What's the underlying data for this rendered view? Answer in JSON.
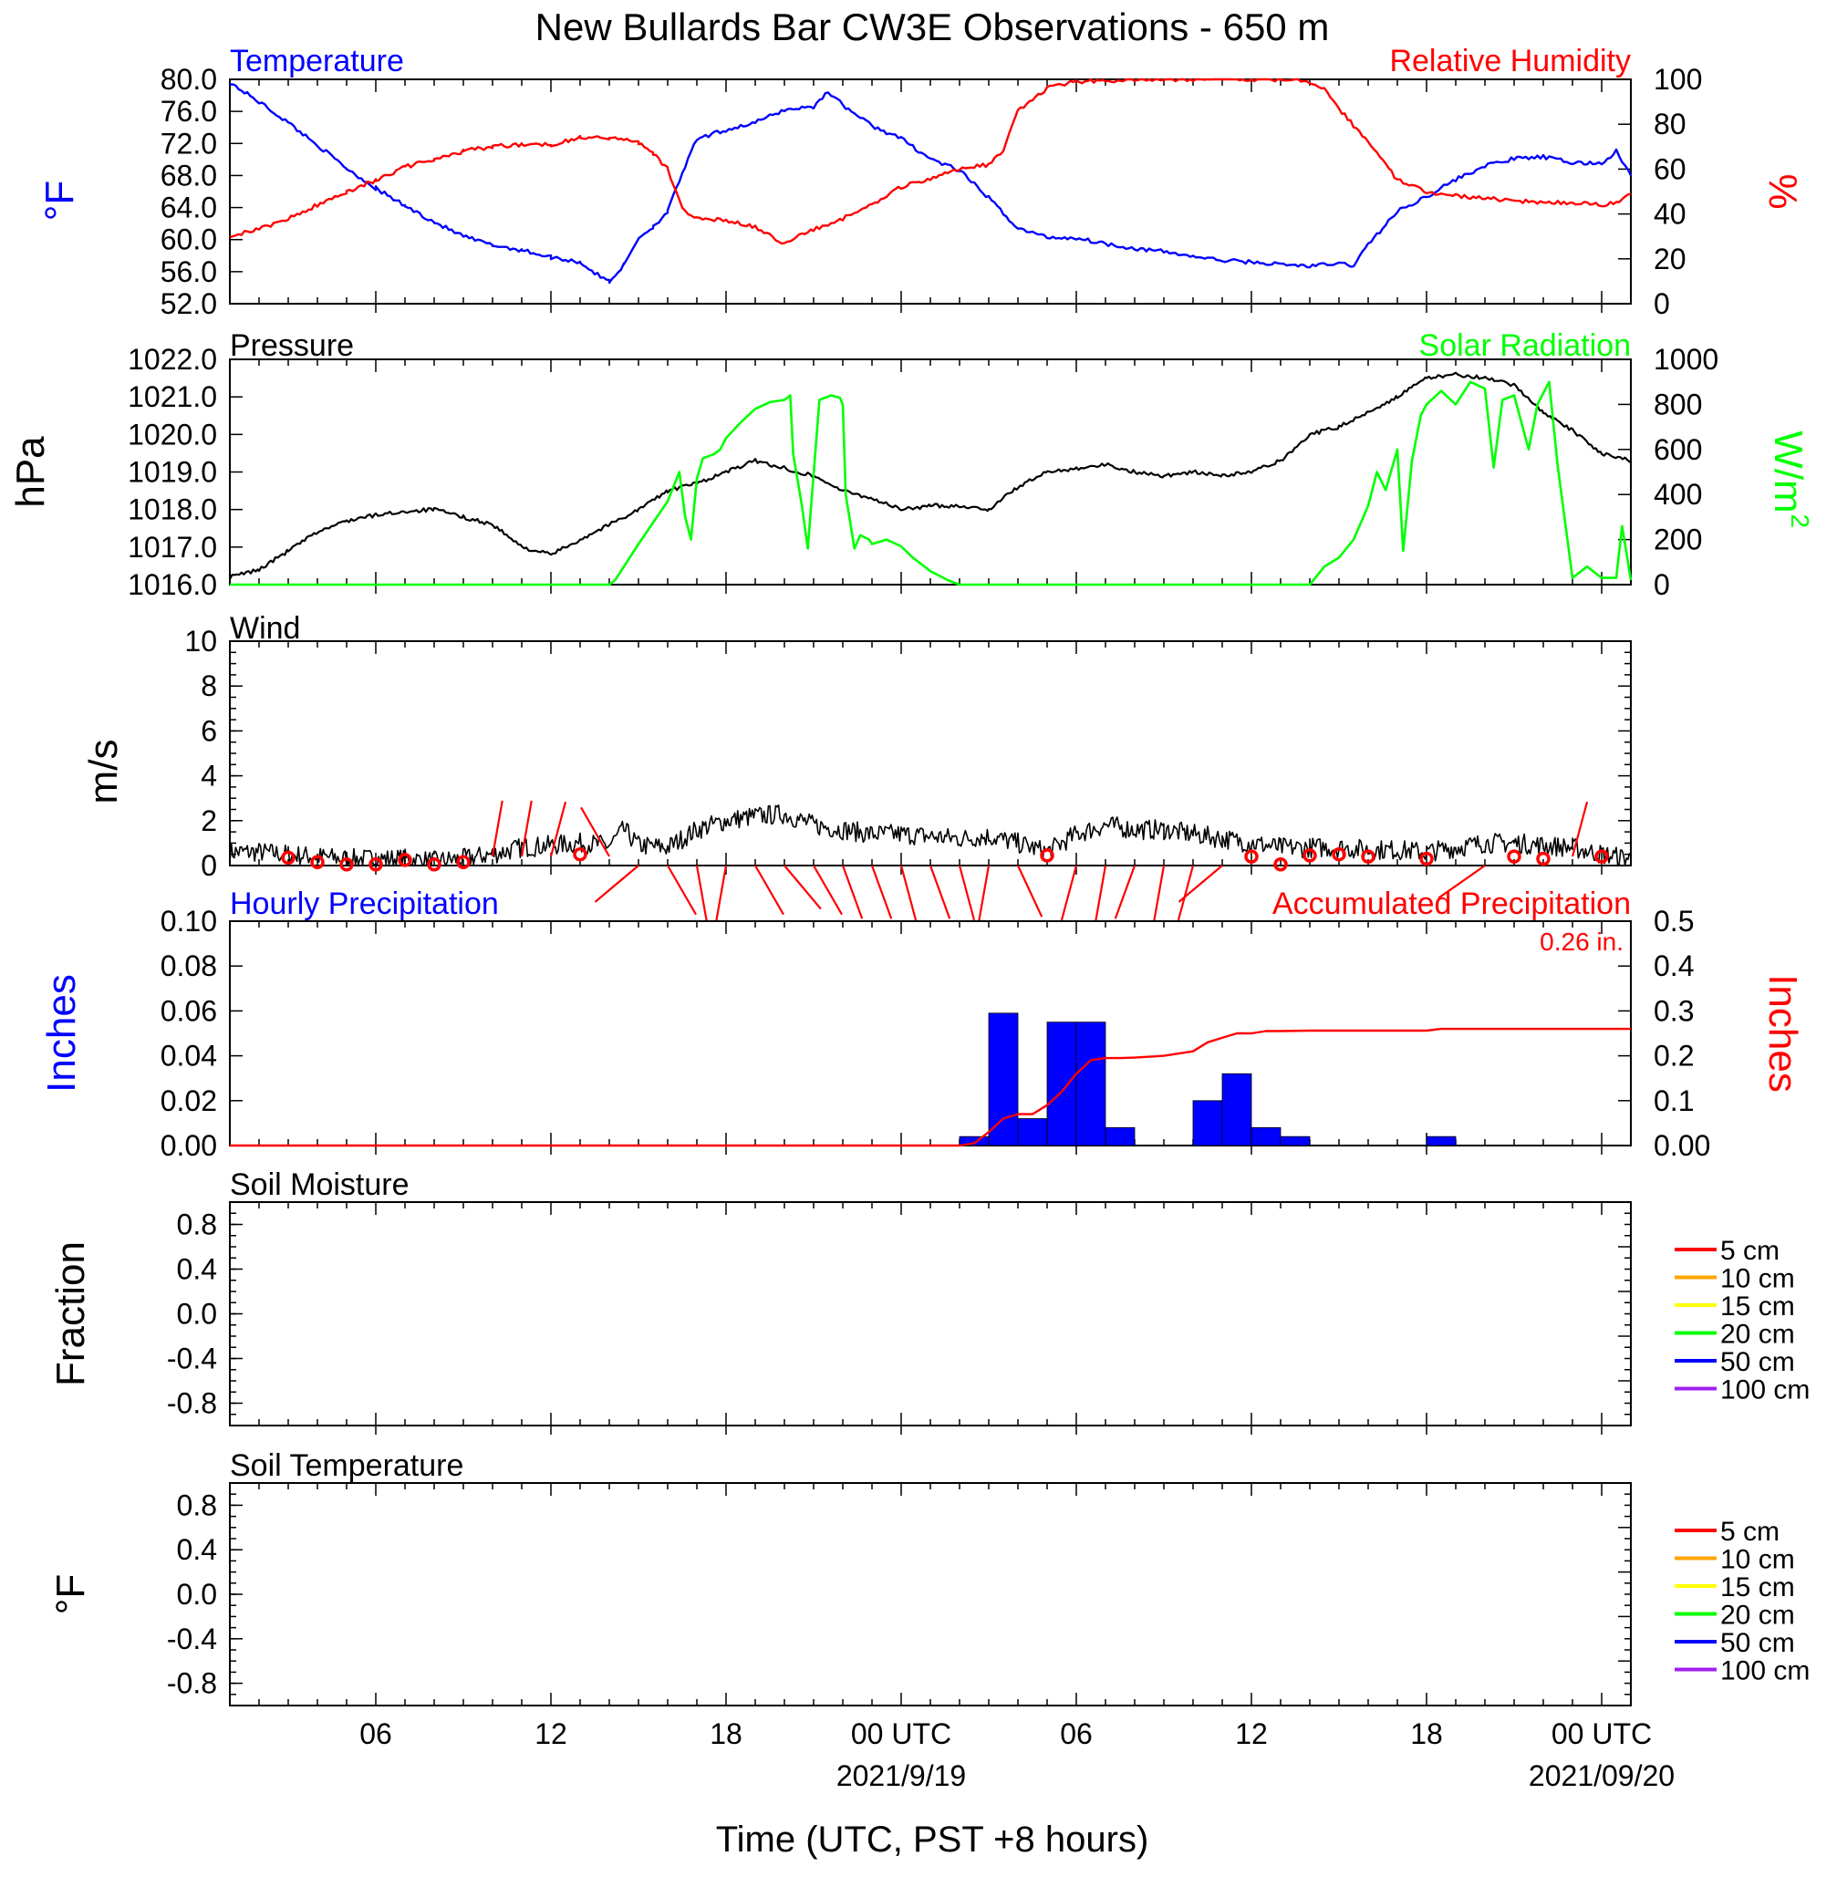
{
  "title": "New Bullards Bar CW3E Observations - 650 m",
  "xlabel": "Time (UTC, PST +8 hours)",
  "x_ticks": {
    "labels": [
      "06",
      "12",
      "18",
      "00 UTC",
      "06",
      "12",
      "18",
      "00 UTC"
    ],
    "hours": [
      6,
      12,
      18,
      24,
      30,
      36,
      42,
      48
    ],
    "dates": [
      {
        "hour": 24,
        "label": "2021/9/19"
      },
      {
        "hour": 48,
        "label": "2021/09/20"
      }
    ]
  },
  "colors": {
    "blue": "#0000ff",
    "red": "#ff0000",
    "green": "#00ff00",
    "black": "#000000",
    "soil_5": "#ff0000",
    "soil_10": "#ffa500",
    "soil_15": "#ffff00",
    "soil_20": "#00ff00",
    "soil_50": "#0000ff",
    "soil_100": "#a020f0"
  },
  "chart_data": [
    {
      "type": "line",
      "panel": "temperature_humidity",
      "left_title": "Temperature",
      "right_title": "Relative Humidity",
      "left_unit": "°F",
      "right_unit": "%",
      "left_ylim": [
        52,
        80
      ],
      "left_ticks": [
        "80.0",
        "76.0",
        "72.0",
        "68.0",
        "64.0",
        "60.0",
        "56.0",
        "52.0"
      ],
      "right_ylim": [
        0,
        100
      ],
      "right_ticks": [
        "100",
        "80",
        "60",
        "40",
        "20",
        "0"
      ],
      "series": [
        {
          "name": "Temperature",
          "axis": "left",
          "color": "#0000ff",
          "x": [
            1,
            2,
            3,
            4,
            5,
            6,
            7,
            8,
            9,
            10,
            11,
            12,
            13,
            13.5,
            14,
            14.5,
            15,
            15.5,
            16,
            16.5,
            17,
            18,
            19,
            20,
            21,
            21.5,
            22,
            23,
            24,
            25,
            26,
            27,
            28,
            29,
            30,
            31,
            32,
            33,
            34,
            35,
            36,
            37,
            38,
            39,
            39.5,
            40,
            41,
            42,
            43,
            44,
            45,
            46,
            47,
            48,
            48.5,
            49
          ],
          "values": [
            79.6,
            77.2,
            74.6,
            71.8,
            68.9,
            66.4,
            64.2,
            62.2,
            60.4,
            59.3,
            58.7,
            57.8,
            57.2,
            55.8,
            54.8,
            56.8,
            60.2,
            61.6,
            63.5,
            68.3,
            72.5,
            73.7,
            74.6,
            76.2,
            76.6,
            78.5,
            76.8,
            74.2,
            72.6,
            70.1,
            68.6,
            65.2,
            61.4,
            60.3,
            60.2,
            59.5,
            58.9,
            58.5,
            57.9,
            57.4,
            57.2,
            56.9,
            56.7,
            57.0,
            56.8,
            59.4,
            63.5,
            65.4,
            67.5,
            69.2,
            70.1,
            70.3,
            69.6,
            69.5,
            71.0,
            68.0
          ]
        },
        {
          "name": "Relative Humidity",
          "axis": "right",
          "color": "#ff0000",
          "x": [
            1,
            2,
            3,
            4,
            5,
            6,
            7,
            8,
            9,
            10,
            11,
            12,
            13,
            14,
            15,
            15.5,
            16,
            16.5,
            17,
            18,
            19,
            20,
            21,
            22,
            23,
            24,
            25,
            26,
            27,
            27.5,
            28,
            29,
            30,
            31,
            32,
            33,
            34,
            35,
            36,
            37,
            38,
            38.5,
            39,
            40,
            41,
            42,
            43,
            44,
            45,
            46,
            47,
            48,
            48.5,
            49
          ],
          "values": [
            30.5,
            33.0,
            38.0,
            44.0,
            50.0,
            55.0,
            61.0,
            64.0,
            68.0,
            70.0,
            71.0,
            71.0,
            74.0,
            74.0,
            72.0,
            67.0,
            60.0,
            42.0,
            38.5,
            37.0,
            34.0,
            27.0,
            33.0,
            38.0,
            44.0,
            52.0,
            56.0,
            60.0,
            62.0,
            68.0,
            86.0,
            96.0,
            99.0,
            99.5,
            99.7,
            100.0,
            100.0,
            100.0,
            100.0,
            99.8,
            99.0,
            96.0,
            87.0,
            72.0,
            55.0,
            50.0,
            48.0,
            47.0,
            46.0,
            45.0,
            45.0,
            44.0,
            45.0,
            49.0
          ]
        }
      ]
    },
    {
      "type": "line",
      "panel": "pressure_solar",
      "left_title": "Pressure",
      "right_title": "Solar Radiation",
      "left_unit": "hPa",
      "right_unit": "W/m",
      "right_unit_sup": "2",
      "left_ylim": [
        1016,
        1022
      ],
      "left_ticks": [
        "1022.0",
        "1021.0",
        "1020.0",
        "1019.0",
        "1018.0",
        "1017.0",
        "1016.0"
      ],
      "right_ylim": [
        0,
        1000
      ],
      "right_ticks": [
        "1000",
        "800",
        "600",
        "400",
        "200",
        "0"
      ],
      "series": [
        {
          "name": "Pressure",
          "axis": "left",
          "color": "#000000",
          "x": [
            1,
            2,
            3,
            4,
            5,
            6,
            7,
            8,
            9,
            10,
            11,
            12,
            13,
            14,
            15,
            16,
            17,
            18,
            19,
            20,
            21,
            22,
            23,
            24,
            25,
            26,
            27,
            28,
            29,
            30,
            31,
            32,
            33,
            34,
            35,
            36,
            37,
            38,
            39,
            40,
            41,
            42,
            43,
            44,
            45,
            46,
            47,
            48,
            49
          ],
          "values": [
            1016.2,
            1016.4,
            1016.9,
            1017.4,
            1017.7,
            1017.85,
            1017.95,
            1018.0,
            1017.8,
            1017.6,
            1017.0,
            1016.8,
            1017.2,
            1017.6,
            1018.0,
            1018.5,
            1018.7,
            1019.0,
            1019.3,
            1019.1,
            1018.9,
            1018.5,
            1018.3,
            1018.0,
            1018.1,
            1018.1,
            1018.0,
            1018.6,
            1019.0,
            1019.1,
            1019.2,
            1019.0,
            1018.9,
            1019.0,
            1018.9,
            1019.0,
            1019.3,
            1020.0,
            1020.2,
            1020.6,
            1021.0,
            1021.5,
            1021.6,
            1021.5,
            1021.3,
            1020.6,
            1020.1,
            1019.5,
            1019.3
          ]
        },
        {
          "name": "Solar Radiation",
          "axis": "right",
          "color": "#00ff00",
          "x": [
            1,
            2,
            3,
            12,
            13,
            14,
            14.2,
            15,
            16,
            16.4,
            16.6,
            16.8,
            17,
            17.2,
            17.6,
            17.8,
            18,
            18.5,
            19,
            19.5,
            20,
            20.2,
            20.3,
            20.6,
            20.8,
            21.2,
            21.6,
            21.9,
            22,
            22.1,
            22.4,
            22.6,
            22.9,
            23,
            23.5,
            24,
            24.4,
            25,
            25.6,
            26,
            26.4,
            27,
            28,
            29,
            30,
            31,
            32,
            33,
            34,
            35,
            36,
            37,
            38,
            38.5,
            39,
            39.5,
            40,
            40.3,
            40.6,
            41,
            41.2,
            41.5,
            41.8,
            42,
            42.5,
            43,
            43.5,
            44,
            44.3,
            44.6,
            45,
            45.5,
            45.8,
            46.2,
            46.5,
            47,
            47.5,
            48,
            48.5,
            48.7,
            49
          ],
          "values": [
            0,
            0,
            0,
            0,
            0,
            0,
            20,
            180,
            370,
            500,
            300,
            200,
            470,
            560,
            580,
            600,
            650,
            720,
            780,
            810,
            820,
            840,
            580,
            350,
            160,
            820,
            840,
            830,
            800,
            400,
            160,
            220,
            200,
            180,
            200,
            170,
            120,
            60,
            20,
            0,
            0,
            0,
            0,
            0,
            0,
            0,
            0,
            0,
            0,
            0,
            0,
            0,
            0,
            80,
            120,
            200,
            350,
            500,
            420,
            600,
            150,
            550,
            750,
            800,
            860,
            800,
            900,
            870,
            520,
            820,
            840,
            600,
            800,
            900,
            520,
            30,
            80,
            30,
            30,
            260,
            20
          ]
        }
      ]
    },
    {
      "type": "line",
      "panel": "wind",
      "title": "Wind",
      "ylabel": "m/s",
      "ylim": [
        0,
        10
      ],
      "y_ticks": [
        "10",
        "8",
        "6",
        "4",
        "2",
        "0"
      ],
      "series": [
        {
          "name": "Wind speed",
          "color": "#000000",
          "x": [
            1,
            2,
            3,
            4,
            5,
            6,
            7,
            8,
            9,
            10,
            11,
            12,
            13,
            14,
            14.5,
            15,
            16,
            17,
            18,
            19,
            20,
            21,
            22,
            23,
            24,
            25,
            26,
            27,
            28,
            29,
            30,
            31,
            32,
            33,
            34,
            35,
            36,
            37,
            38,
            39,
            40,
            41,
            42,
            43,
            44,
            45,
            46,
            47,
            48,
            49
          ],
          "values": [
            0.6,
            0.6,
            0.5,
            0.4,
            0.3,
            0.3,
            0.3,
            0.2,
            0.3,
            0.5,
            0.8,
            0.9,
            1.0,
            0.9,
            1.6,
            0.9,
            0.8,
            1.6,
            2.0,
            2.2,
            2.3,
            1.8,
            1.6,
            1.4,
            1.4,
            1.3,
            1.2,
            1.3,
            1.0,
            0.6,
            1.4,
            1.8,
            1.6,
            1.6,
            1.4,
            1.2,
            1.0,
            0.8,
            0.8,
            0.8,
            0.7,
            0.7,
            0.6,
            0.8,
            1.0,
            1.0,
            0.9,
            0.8,
            0.5,
            0.3
          ],
          "noise_amplitude": 0.45
        },
        {
          "name": "Wind barbs (circles = calm)",
          "color": "#ff0000",
          "calm_hours": [
            3,
            4,
            5,
            6,
            7,
            8,
            9,
            13,
            29,
            36,
            37,
            38,
            39,
            40,
            42,
            45,
            46,
            48
          ],
          "calm_speeds": [
            0.35,
            0.15,
            0.05,
            0.05,
            0.25,
            0.05,
            0.15,
            0.5,
            0.45,
            0.4,
            0.05,
            0.45,
            0.5,
            0.4,
            0.3,
            0.4,
            0.3,
            0.4
          ],
          "staffs": [
            {
              "x": 10,
              "dir": 10
            },
            {
              "x": 11,
              "dir": 10
            },
            {
              "x": 12,
              "dir": 15
            },
            {
              "x": 14,
              "dir": 330
            },
            {
              "x": 15,
              "dir": 230
            },
            {
              "x": 16,
              "dir": 150
            },
            {
              "x": 17,
              "dir": 170
            },
            {
              "x": 18,
              "dir": 190
            },
            {
              "x": 19,
              "dir": 150
            },
            {
              "x": 20,
              "dir": 140
            },
            {
              "x": 21,
              "dir": 150
            },
            {
              "x": 22,
              "dir": 160
            },
            {
              "x": 23,
              "dir": 160
            },
            {
              "x": 24,
              "dir": 165
            },
            {
              "x": 25,
              "dir": 160
            },
            {
              "x": 26,
              "dir": 165
            },
            {
              "x": 27,
              "dir": 190
            },
            {
              "x": 28,
              "dir": 155
            },
            {
              "x": 30,
              "dir": 195
            },
            {
              "x": 31,
              "dir": 190
            },
            {
              "x": 32,
              "dir": 200
            },
            {
              "x": 33,
              "dir": 190
            },
            {
              "x": 34,
              "dir": 195
            },
            {
              "x": 35,
              "dir": 230
            },
            {
              "x": 44,
              "dir": 235
            },
            {
              "x": 47,
              "dir": 15
            }
          ]
        }
      ]
    },
    {
      "type": "bar",
      "panel": "precipitation",
      "left_title": "Hourly Precipitation",
      "right_title": "Accumulated Precipitation",
      "annotation": "0.26 in.",
      "left_unit": "Inches",
      "right_unit": "Inches",
      "left_ylim": [
        0,
        0.1
      ],
      "left_ticks": [
        "0.10",
        "0.08",
        "0.06",
        "0.04",
        "0.02",
        "0.00"
      ],
      "right_ylim": [
        0,
        0.5
      ],
      "right_ticks": [
        "0.5",
        "0.4",
        "0.3",
        "0.2",
        "0.1",
        "0.00"
      ],
      "series": [
        {
          "name": "Hourly Precipitation",
          "axis": "left",
          "color": "#0000ff",
          "hours": [
            26,
            27,
            28,
            29,
            30,
            31,
            32,
            34,
            35,
            36,
            37,
            42
          ],
          "values": [
            0.004,
            0.059,
            0.012,
            0.055,
            0.055,
            0.008,
            0.0,
            0.02,
            0.032,
            0.008,
            0.004,
            0.004
          ]
        },
        {
          "name": "Accumulated Precipitation",
          "axis": "right",
          "color": "#ff0000",
          "x": [
            1,
            26,
            26.5,
            27,
            27.5,
            28,
            28.5,
            29,
            29.5,
            30,
            30.5,
            31,
            31.5,
            32,
            33,
            34,
            34.5,
            35,
            35.5,
            36,
            36.5,
            37,
            38,
            42,
            42.5,
            49
          ],
          "values": [
            0,
            0,
            0.005,
            0.03,
            0.06,
            0.07,
            0.07,
            0.09,
            0.12,
            0.16,
            0.19,
            0.195,
            0.195,
            0.196,
            0.2,
            0.21,
            0.23,
            0.24,
            0.25,
            0.25,
            0.255,
            0.255,
            0.256,
            0.256,
            0.26,
            0.26
          ]
        }
      ]
    },
    {
      "type": "line",
      "panel": "soil_moisture",
      "title": "Soil Moisture",
      "ylabel": "Fraction",
      "ylim": [
        -1,
        1
      ],
      "y_ticks": [
        "0.8",
        "0.4",
        "0.0",
        "-0.4",
        "-0.8"
      ],
      "series": [],
      "legend": [
        "5 cm",
        "10 cm",
        "15 cm",
        "20 cm",
        "50 cm",
        "100 cm"
      ],
      "legend_placement": "right"
    },
    {
      "type": "line",
      "panel": "soil_temperature",
      "title": "Soil Temperature",
      "ylabel": "°F",
      "ylim": [
        -1,
        1
      ],
      "y_ticks": [
        "0.8",
        "0.4",
        "0.0",
        "-0.4",
        "-0.8"
      ],
      "series": [],
      "legend": [
        "5 cm",
        "10 cm",
        "15 cm",
        "20 cm",
        "50 cm",
        "100 cm"
      ],
      "legend_placement": "right"
    }
  ]
}
